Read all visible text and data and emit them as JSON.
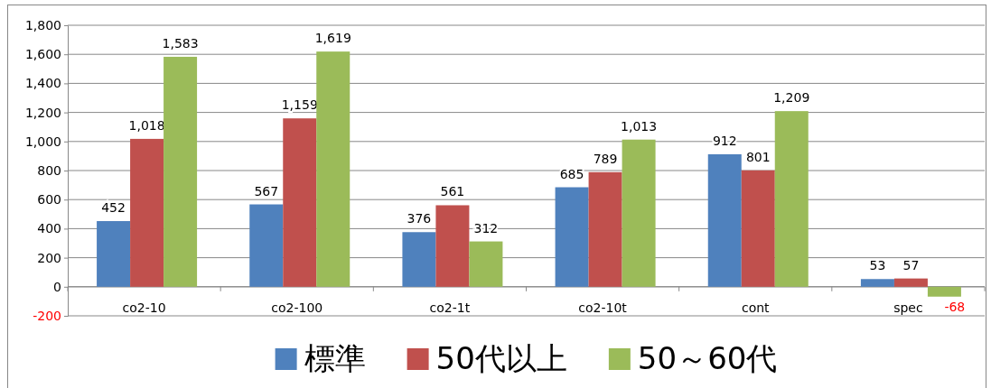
{
  "chart_data": {
    "type": "bar",
    "categories": [
      "co2-10",
      "co2-100",
      "co2-1t",
      "co2-10t",
      "cont",
      "spec"
    ],
    "series": [
      {
        "name": "標準",
        "color": "#4f81bd",
        "values": [
          452,
          567,
          376,
          685,
          912,
          53
        ],
        "value_labels": [
          "452",
          "567",
          "376",
          "685",
          "912",
          "53"
        ]
      },
      {
        "name": "50代以上",
        "color": "#c0504d",
        "values": [
          1018,
          1159,
          561,
          789,
          801,
          57
        ],
        "value_labels": [
          "1,018",
          "1,159",
          "561",
          "789",
          "801",
          "57"
        ]
      },
      {
        "name": "50～60代",
        "color": "#9bbb59",
        "values": [
          1583,
          1619,
          312,
          1013,
          1209,
          -68
        ],
        "value_labels": [
          "1,583",
          "1,619",
          "312",
          "1,013",
          "1,209",
          "-68"
        ]
      }
    ],
    "ylim": [
      -200,
      1800
    ],
    "yticks": [
      {
        "value": -200,
        "label": "-200"
      },
      {
        "value": 0,
        "label": "0"
      },
      {
        "value": 200,
        "label": "200"
      },
      {
        "value": 400,
        "label": "400"
      },
      {
        "value": 600,
        "label": "600"
      },
      {
        "value": 800,
        "label": "800"
      },
      {
        "value": 1000,
        "label": "1,000"
      },
      {
        "value": 1200,
        "label": "1,200"
      },
      {
        "value": 1400,
        "label": "1,400"
      },
      {
        "value": 1600,
        "label": "1,600"
      },
      {
        "value": 1800,
        "label": "1,800"
      }
    ],
    "grid": "y",
    "legend": "bottom"
  }
}
